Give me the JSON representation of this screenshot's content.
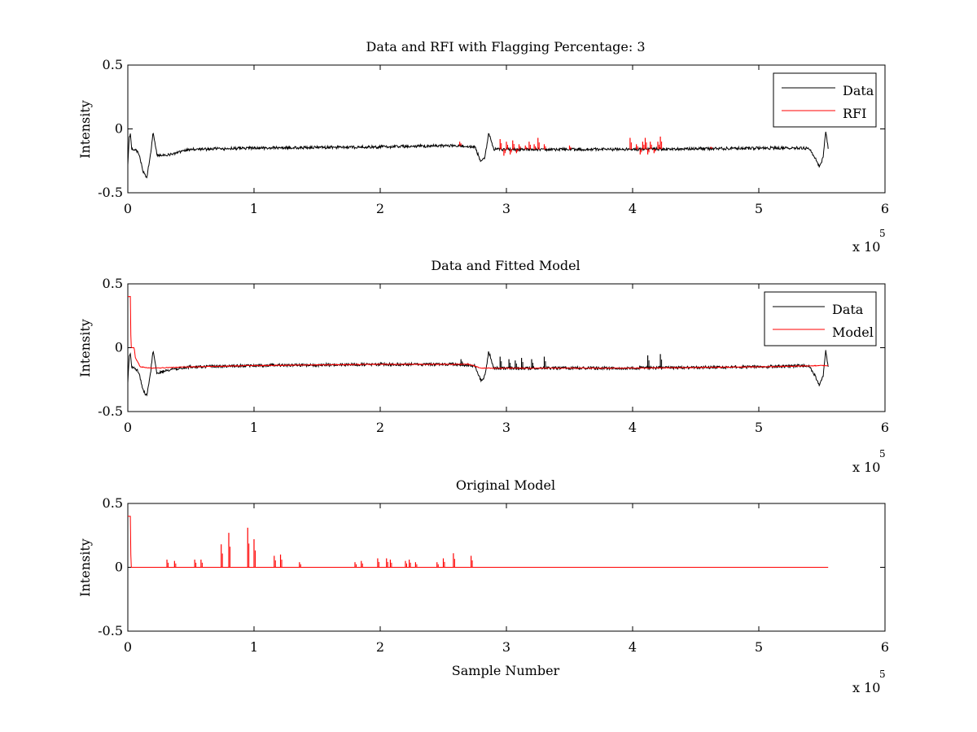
{
  "figure": {
    "background": "#ffffff"
  },
  "chart_data": [
    {
      "type": "line",
      "title": "Data and RFI with Flagging Percentage: 3",
      "xlabel": "",
      "ylabel": "Intensity",
      "xlim": [
        0,
        6
      ],
      "ylim": [
        -0.5,
        0.5
      ],
      "x_ticks": [
        "0",
        "1",
        "2",
        "3",
        "4",
        "5",
        "6"
      ],
      "y_ticks": [
        "-0.5",
        "0",
        "0.5"
      ],
      "x_exponent": {
        "base": "x 10",
        "power": "5"
      },
      "grid": false,
      "legend_position": "top-right",
      "series": [
        {
          "name": "Data",
          "color": "#000000",
          "data": [
            [
              0,
              -0.28
            ],
            [
              0.01,
              -0.08
            ],
            [
              0.02,
              -0.04
            ],
            [
              0.03,
              -0.16
            ],
            [
              0.06,
              -0.16
            ],
            [
              0.09,
              -0.2
            ],
            [
              0.12,
              -0.33
            ],
            [
              0.15,
              -0.38
            ],
            [
              0.18,
              -0.2
            ],
            [
              0.2,
              -0.02
            ],
            [
              0.23,
              -0.2
            ],
            [
              0.3,
              -0.21
            ],
            [
              0.5,
              -0.16
            ],
            [
              1.0,
              -0.15
            ],
            [
              2.0,
              -0.14
            ],
            [
              2.6,
              -0.13
            ],
            [
              2.75,
              -0.14
            ],
            [
              2.8,
              -0.26
            ],
            [
              2.83,
              -0.22
            ],
            [
              2.86,
              -0.03
            ],
            [
              2.9,
              -0.16
            ],
            [
              3.5,
              -0.16
            ],
            [
              4.0,
              -0.16
            ],
            [
              5.0,
              -0.15
            ],
            [
              5.4,
              -0.15
            ],
            [
              5.45,
              -0.23
            ],
            [
              5.48,
              -0.3
            ],
            [
              5.51,
              -0.22
            ],
            [
              5.53,
              -0.02
            ],
            [
              5.55,
              -0.15
            ]
          ],
          "noise": 0.012
        },
        {
          "name": "RFI",
          "color": "#ff0000",
          "spikes": [
            [
              2.63,
              -0.1
            ],
            [
              2.95,
              -0.08
            ],
            [
              2.98,
              -0.21
            ],
            [
              3.0,
              -0.1
            ],
            [
              3.03,
              -0.2
            ],
            [
              3.05,
              -0.09
            ],
            [
              3.08,
              -0.19
            ],
            [
              3.1,
              -0.12
            ],
            [
              3.15,
              -0.13
            ],
            [
              3.18,
              -0.1
            ],
            [
              3.22,
              -0.12
            ],
            [
              3.25,
              -0.07
            ],
            [
              3.3,
              -0.12
            ],
            [
              3.5,
              -0.13
            ],
            [
              3.98,
              -0.07
            ],
            [
              4.03,
              -0.12
            ],
            [
              4.06,
              -0.2
            ],
            [
              4.08,
              -0.1
            ],
            [
              4.1,
              -0.07
            ],
            [
              4.12,
              -0.2
            ],
            [
              4.14,
              -0.1
            ],
            [
              4.17,
              -0.19
            ],
            [
              4.2,
              -0.1
            ],
            [
              4.22,
              -0.06
            ],
            [
              4.62,
              -0.14
            ]
          ]
        }
      ]
    },
    {
      "type": "line",
      "title": "Data and Fitted Model",
      "xlabel": "",
      "ylabel": "Intensity",
      "xlim": [
        0,
        6
      ],
      "ylim": [
        -0.5,
        0.5
      ],
      "x_ticks": [
        "0",
        "1",
        "2",
        "3",
        "4",
        "5",
        "6"
      ],
      "y_ticks": [
        "-0.5",
        "0",
        "0.5"
      ],
      "x_exponent": {
        "base": "x 10",
        "power": "5"
      },
      "grid": false,
      "legend_position": "top-right",
      "series": [
        {
          "name": "Data",
          "color": "#000000",
          "data": [
            [
              0,
              -0.28
            ],
            [
              0.01,
              -0.08
            ],
            [
              0.02,
              -0.04
            ],
            [
              0.03,
              -0.16
            ],
            [
              0.06,
              -0.16
            ],
            [
              0.09,
              -0.2
            ],
            [
              0.12,
              -0.33
            ],
            [
              0.15,
              -0.38
            ],
            [
              0.18,
              -0.2
            ],
            [
              0.2,
              -0.02
            ],
            [
              0.23,
              -0.2
            ],
            [
              0.3,
              -0.18
            ],
            [
              0.5,
              -0.15
            ],
            [
              1.0,
              -0.14
            ],
            [
              2.0,
              -0.13
            ],
            [
              2.6,
              -0.13
            ],
            [
              2.75,
              -0.14
            ],
            [
              2.8,
              -0.26
            ],
            [
              2.83,
              -0.22
            ],
            [
              2.86,
              -0.03
            ],
            [
              2.9,
              -0.16
            ],
            [
              3.5,
              -0.16
            ],
            [
              4.0,
              -0.16
            ],
            [
              5.0,
              -0.15
            ],
            [
              5.4,
              -0.14
            ],
            [
              5.45,
              -0.23
            ],
            [
              5.48,
              -0.3
            ],
            [
              5.51,
              -0.22
            ],
            [
              5.53,
              -0.02
            ],
            [
              5.55,
              -0.15
            ]
          ],
          "noise": 0.012,
          "spikes": [
            [
              2.64,
              -0.09
            ],
            [
              2.95,
              -0.07
            ],
            [
              3.02,
              -0.09
            ],
            [
              3.07,
              -0.1
            ],
            [
              3.12,
              -0.08
            ],
            [
              3.2,
              -0.09
            ],
            [
              3.3,
              -0.07
            ],
            [
              4.12,
              -0.06
            ],
            [
              4.22,
              -0.05
            ]
          ]
        },
        {
          "name": "Model",
          "color": "#ff0000",
          "data": [
            [
              0,
              0.4
            ],
            [
              0.02,
              0.4
            ],
            [
              0.025,
              0.0
            ],
            [
              0.05,
              0.0
            ],
            [
              0.06,
              -0.08
            ],
            [
              0.1,
              -0.15
            ],
            [
              0.2,
              -0.16
            ],
            [
              0.5,
              -0.15
            ],
            [
              1.0,
              -0.14
            ],
            [
              2.0,
              -0.13
            ],
            [
              2.7,
              -0.13
            ],
            [
              2.8,
              -0.16
            ],
            [
              3.5,
              -0.16
            ],
            [
              4.0,
              -0.16
            ],
            [
              5.0,
              -0.15
            ],
            [
              5.5,
              -0.14
            ],
            [
              5.55,
              -0.14
            ]
          ],
          "noise": 0.003
        }
      ]
    },
    {
      "type": "line",
      "title": "Original Model",
      "xlabel": "Sample Number",
      "ylabel": "Intensity",
      "xlim": [
        0,
        6
      ],
      "ylim": [
        -0.5,
        0.5
      ],
      "x_ticks": [
        "0",
        "1",
        "2",
        "3",
        "4",
        "5",
        "6"
      ],
      "y_ticks": [
        "-0.5",
        "0",
        "0.5"
      ],
      "x_exponent": {
        "base": "x 10",
        "power": "5"
      },
      "grid": false,
      "series": [
        {
          "name": "",
          "color": "#ff0000",
          "data": [
            [
              0,
              0.4
            ],
            [
              0.02,
              0.4
            ],
            [
              0.025,
              0.0
            ],
            [
              5.55,
              0.0
            ]
          ],
          "spikes": [
            [
              0.31,
              0.06
            ],
            [
              0.37,
              0.05
            ],
            [
              0.53,
              0.06
            ],
            [
              0.58,
              0.06
            ],
            [
              0.74,
              0.18
            ],
            [
              0.8,
              0.27
            ],
            [
              0.95,
              0.31
            ],
            [
              1.0,
              0.22
            ],
            [
              1.16,
              0.09
            ],
            [
              1.21,
              0.1
            ],
            [
              1.36,
              0.04
            ],
            [
              1.8,
              0.04
            ],
            [
              1.85,
              0.05
            ],
            [
              1.98,
              0.07
            ],
            [
              2.05,
              0.07
            ],
            [
              2.08,
              0.06
            ],
            [
              2.2,
              0.05
            ],
            [
              2.23,
              0.06
            ],
            [
              2.28,
              0.04
            ],
            [
              2.45,
              0.04
            ],
            [
              2.5,
              0.07
            ],
            [
              2.58,
              0.11
            ],
            [
              2.72,
              0.09
            ]
          ]
        }
      ]
    }
  ]
}
